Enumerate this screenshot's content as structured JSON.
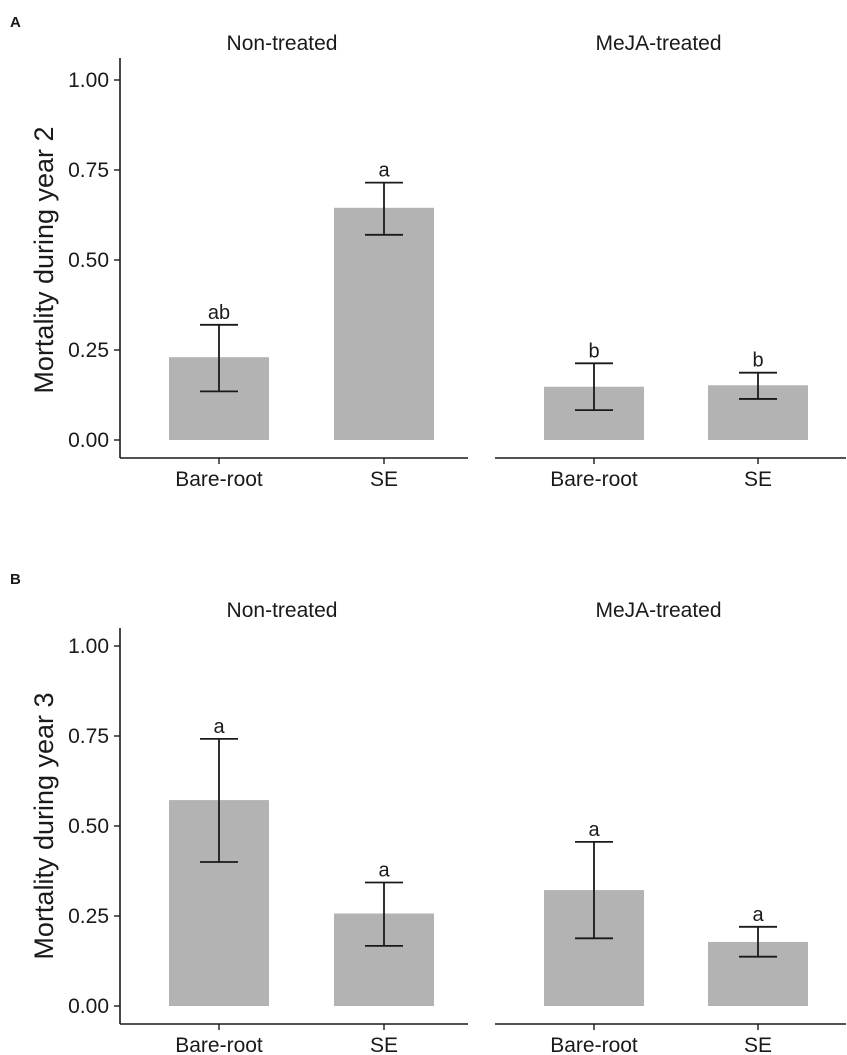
{
  "chart_data": [
    {
      "type": "bar",
      "panel_label": "A",
      "ylabel": "Mortality during year 2",
      "ylim": [
        0,
        1
      ],
      "yticks": [
        "0.00",
        "0.25",
        "0.50",
        "0.75",
        "1.00"
      ],
      "facets": [
        {
          "title": "Non-treated",
          "categories": [
            "Bare-root",
            "SE"
          ],
          "values": [
            0.23,
            0.645
          ],
          "error_low": [
            0.135,
            0.57
          ],
          "error_high": [
            0.32,
            0.715
          ],
          "letters": [
            "ab",
            "a"
          ]
        },
        {
          "title": "MeJA-treated",
          "categories": [
            "Bare-root",
            "SE"
          ],
          "values": [
            0.148,
            0.152
          ],
          "error_low": [
            0.083,
            0.114
          ],
          "error_high": [
            0.213,
            0.187
          ],
          "letters": [
            "b",
            "b"
          ]
        }
      ]
    },
    {
      "type": "bar",
      "panel_label": "B",
      "ylabel": "Mortality during year 3",
      "ylim": [
        0,
        1
      ],
      "yticks": [
        "0.00",
        "0.25",
        "0.50",
        "0.75",
        "1.00"
      ],
      "facets": [
        {
          "title": "Non-treated",
          "categories": [
            "Bare-root",
            "SE"
          ],
          "values": [
            0.572,
            0.257
          ],
          "error_low": [
            0.4,
            0.167
          ],
          "error_high": [
            0.742,
            0.343
          ],
          "letters": [
            "a",
            "a"
          ]
        },
        {
          "title": "MeJA-treated",
          "categories": [
            "Bare-root",
            "SE"
          ],
          "values": [
            0.322,
            0.178
          ],
          "error_low": [
            0.188,
            0.137
          ],
          "error_high": [
            0.456,
            0.22
          ],
          "letters": [
            "a",
            "a"
          ]
        }
      ]
    }
  ],
  "colors": {
    "bar": "#b3b3b3",
    "axis": "#1a1a1a",
    "text": "#1a1a1a"
  }
}
